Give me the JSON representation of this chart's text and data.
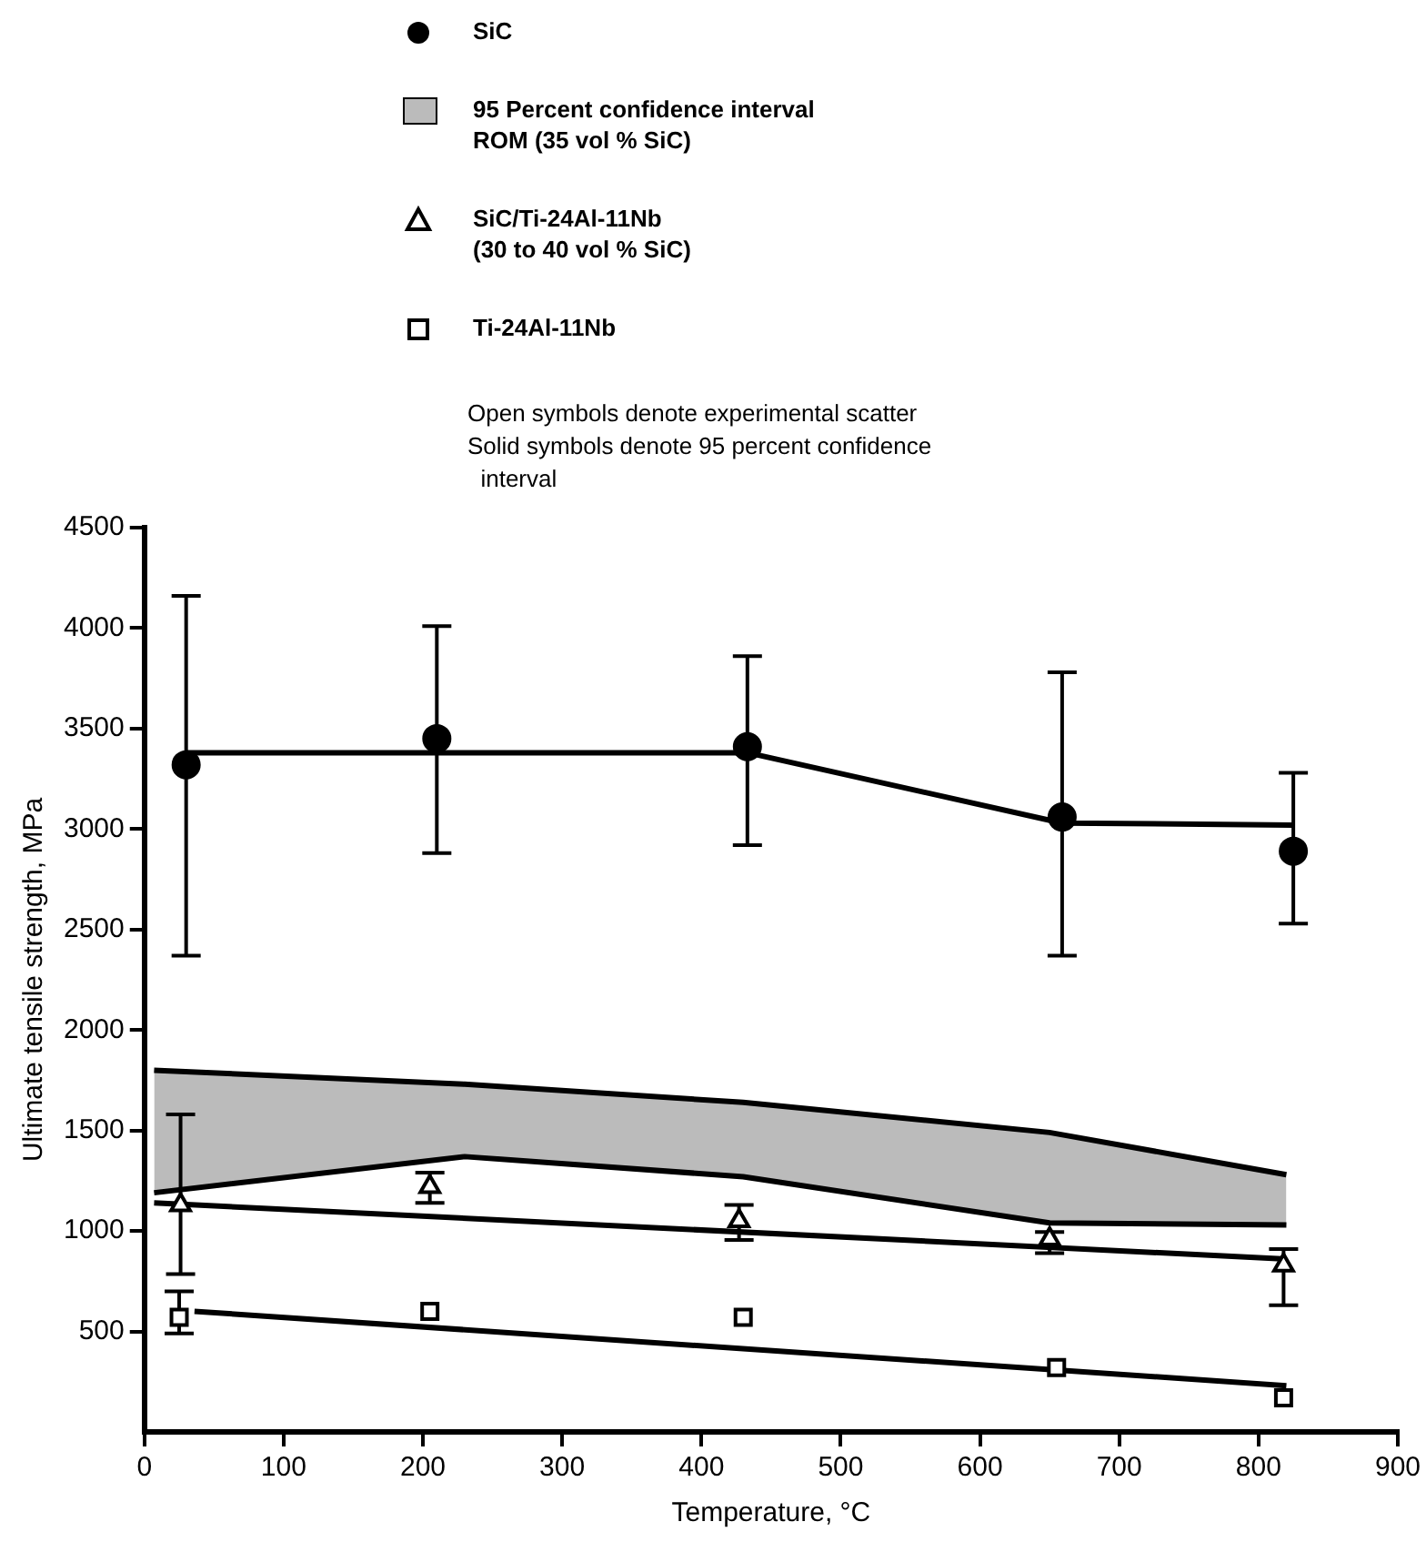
{
  "chart_data": {
    "type": "scatter",
    "xlabel": "Temperature, °C",
    "ylabel": "Ultimate tensile strength, MPa",
    "xlim": [
      0,
      900
    ],
    "xticks": [
      0,
      100,
      200,
      300,
      400,
      500,
      600,
      700,
      800,
      900
    ],
    "ylim": [
      0,
      4500
    ],
    "yticks": [
      500,
      1000,
      1500,
      2000,
      2500,
      3000,
      3500,
      4000,
      4500
    ],
    "legend": "top",
    "grid": false,
    "annotations": [
      "Open symbols denote experimental scatter",
      "Solid symbols denote 95 percent confidence interval"
    ],
    "series": [
      {
        "type": "scatter",
        "name": "SiC",
        "color": "#000000",
        "marker": "circle",
        "x": [
          30,
          210,
          433,
          659,
          825
        ],
        "values": [
          3320,
          3450,
          3410,
          3060,
          2890
        ],
        "errors": [
          [
            2370,
            4160
          ],
          [
            2880,
            4010
          ],
          [
            2920,
            3860
          ],
          [
            2370,
            3780
          ],
          [
            2530,
            3280
          ]
        ]
      },
      {
        "type": "line",
        "color": "#000000",
        "marker": "none",
        "x": [
          30,
          433,
          659,
          825
        ],
        "values": [
          3380,
          3380,
          3030,
          3020
        ]
      },
      {
        "type": "area",
        "name": "95 Percent confidence interval\nROM (35 vol % SiC)",
        "color": "#bbbbbb",
        "x": [
          7,
          230,
          430,
          650,
          820
        ],
        "values": [
          1800,
          1730,
          1640,
          1490,
          1280
        ]
      },
      {
        "type": "line",
        "color": "#000000",
        "marker": "none",
        "x": [
          7,
          230,
          430,
          650,
          820
        ],
        "values": [
          1190,
          1370,
          1270,
          1040,
          1030
        ]
      },
      {
        "type": "scatter",
        "name": "SiC/Ti-24Al-11Nb\n(30 to 40 vol % SiC)",
        "color": "#000000",
        "marker": "triangle",
        "x": [
          26,
          205,
          427,
          650,
          818
        ],
        "values": [
          1130,
          1220,
          1050,
          960,
          830
        ],
        "errors": [
          [
            785,
            1580
          ],
          [
            1140,
            1290
          ],
          [
            955,
            1130
          ],
          [
            890,
            995
          ],
          [
            630,
            910
          ]
        ]
      },
      {
        "type": "line",
        "color": "#000000",
        "marker": "none",
        "x": [
          7,
          820
        ],
        "values": [
          1140,
          860
        ]
      },
      {
        "type": "scatter",
        "name": "Ti-24Al-11Nb",
        "color": "#000000",
        "marker": "square",
        "x": [
          25,
          205,
          430,
          655,
          818
        ],
        "values": [
          570,
          600,
          570,
          320,
          170
        ],
        "errors": [
          [
            490,
            700
          ],
          null,
          null,
          null,
          null
        ]
      },
      {
        "type": "line",
        "color": "#000000",
        "marker": "none",
        "x": [
          36,
          820
        ],
        "values": [
          600,
          230
        ]
      }
    ]
  }
}
